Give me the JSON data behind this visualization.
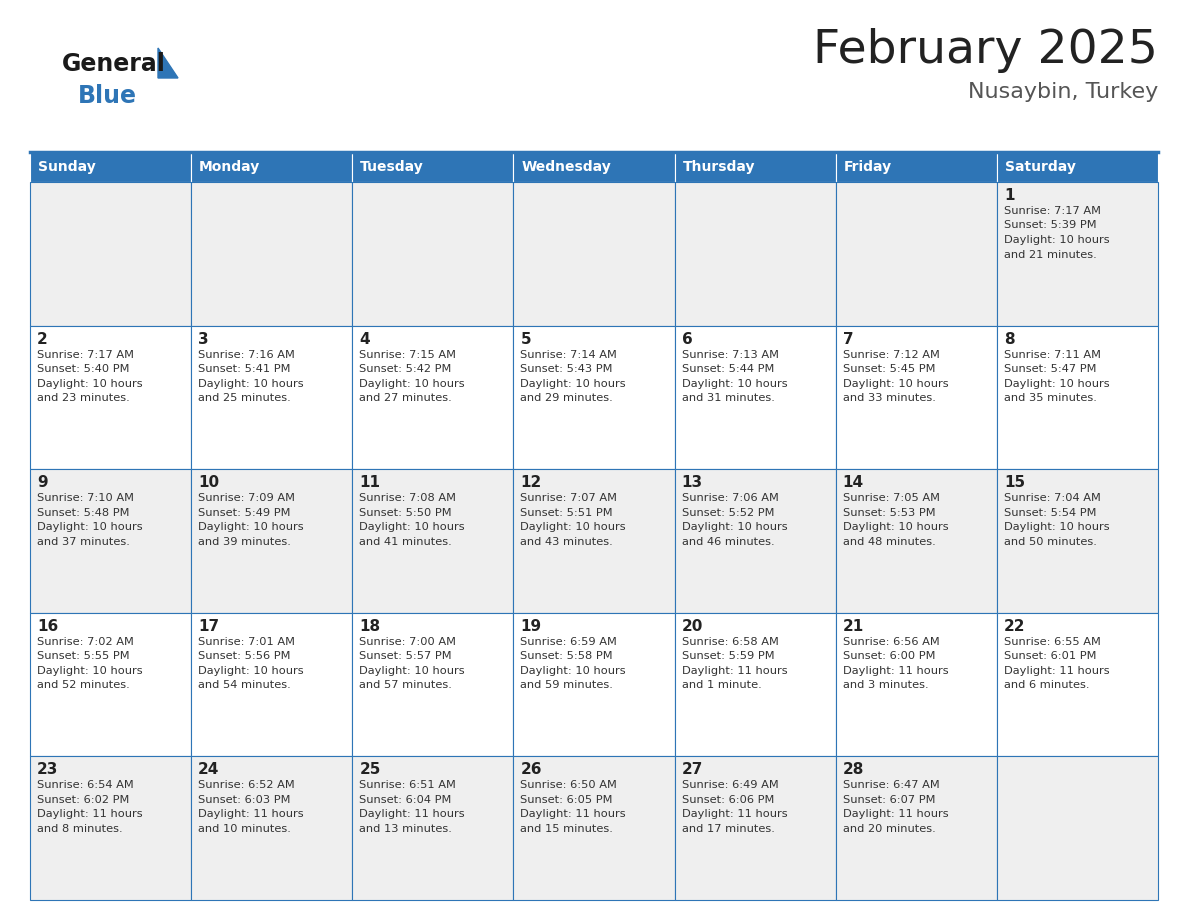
{
  "title": "February 2025",
  "subtitle": "Nusaybin, Turkey",
  "days_of_week": [
    "Sunday",
    "Monday",
    "Tuesday",
    "Wednesday",
    "Thursday",
    "Friday",
    "Saturday"
  ],
  "header_bg": "#2e75b6",
  "header_text": "#ffffff",
  "row_bg_light": "#efefef",
  "row_bg_white": "#ffffff",
  "cell_border_color": "#2e75b6",
  "day_num_color": "#222222",
  "info_color": "#333333",
  "title_color": "#222222",
  "subtitle_color": "#555555",
  "logo_general_color": "#1a1a1a",
  "logo_blue_color": "#2e75b6",
  "weeks": [
    [
      {
        "day": null,
        "sunrise": null,
        "sunset": null,
        "daylight_line1": null,
        "daylight_line2": null
      },
      {
        "day": null,
        "sunrise": null,
        "sunset": null,
        "daylight_line1": null,
        "daylight_line2": null
      },
      {
        "day": null,
        "sunrise": null,
        "sunset": null,
        "daylight_line1": null,
        "daylight_line2": null
      },
      {
        "day": null,
        "sunrise": null,
        "sunset": null,
        "daylight_line1": null,
        "daylight_line2": null
      },
      {
        "day": null,
        "sunrise": null,
        "sunset": null,
        "daylight_line1": null,
        "daylight_line2": null
      },
      {
        "day": null,
        "sunrise": null,
        "sunset": null,
        "daylight_line1": null,
        "daylight_line2": null
      },
      {
        "day": "1",
        "sunrise": "7:17 AM",
        "sunset": "5:39 PM",
        "daylight_line1": "10 hours",
        "daylight_line2": "and 21 minutes."
      }
    ],
    [
      {
        "day": "2",
        "sunrise": "7:17 AM",
        "sunset": "5:40 PM",
        "daylight_line1": "10 hours",
        "daylight_line2": "and 23 minutes."
      },
      {
        "day": "3",
        "sunrise": "7:16 AM",
        "sunset": "5:41 PM",
        "daylight_line1": "10 hours",
        "daylight_line2": "and 25 minutes."
      },
      {
        "day": "4",
        "sunrise": "7:15 AM",
        "sunset": "5:42 PM",
        "daylight_line1": "10 hours",
        "daylight_line2": "and 27 minutes."
      },
      {
        "day": "5",
        "sunrise": "7:14 AM",
        "sunset": "5:43 PM",
        "daylight_line1": "10 hours",
        "daylight_line2": "and 29 minutes."
      },
      {
        "day": "6",
        "sunrise": "7:13 AM",
        "sunset": "5:44 PM",
        "daylight_line1": "10 hours",
        "daylight_line2": "and 31 minutes."
      },
      {
        "day": "7",
        "sunrise": "7:12 AM",
        "sunset": "5:45 PM",
        "daylight_line1": "10 hours",
        "daylight_line2": "and 33 minutes."
      },
      {
        "day": "8",
        "sunrise": "7:11 AM",
        "sunset": "5:47 PM",
        "daylight_line1": "10 hours",
        "daylight_line2": "and 35 minutes."
      }
    ],
    [
      {
        "day": "9",
        "sunrise": "7:10 AM",
        "sunset": "5:48 PM",
        "daylight_line1": "10 hours",
        "daylight_line2": "and 37 minutes."
      },
      {
        "day": "10",
        "sunrise": "7:09 AM",
        "sunset": "5:49 PM",
        "daylight_line1": "10 hours",
        "daylight_line2": "and 39 minutes."
      },
      {
        "day": "11",
        "sunrise": "7:08 AM",
        "sunset": "5:50 PM",
        "daylight_line1": "10 hours",
        "daylight_line2": "and 41 minutes."
      },
      {
        "day": "12",
        "sunrise": "7:07 AM",
        "sunset": "5:51 PM",
        "daylight_line1": "10 hours",
        "daylight_line2": "and 43 minutes."
      },
      {
        "day": "13",
        "sunrise": "7:06 AM",
        "sunset": "5:52 PM",
        "daylight_line1": "10 hours",
        "daylight_line2": "and 46 minutes."
      },
      {
        "day": "14",
        "sunrise": "7:05 AM",
        "sunset": "5:53 PM",
        "daylight_line1": "10 hours",
        "daylight_line2": "and 48 minutes."
      },
      {
        "day": "15",
        "sunrise": "7:04 AM",
        "sunset": "5:54 PM",
        "daylight_line1": "10 hours",
        "daylight_line2": "and 50 minutes."
      }
    ],
    [
      {
        "day": "16",
        "sunrise": "7:02 AM",
        "sunset": "5:55 PM",
        "daylight_line1": "10 hours",
        "daylight_line2": "and 52 minutes."
      },
      {
        "day": "17",
        "sunrise": "7:01 AM",
        "sunset": "5:56 PM",
        "daylight_line1": "10 hours",
        "daylight_line2": "and 54 minutes."
      },
      {
        "day": "18",
        "sunrise": "7:00 AM",
        "sunset": "5:57 PM",
        "daylight_line1": "10 hours",
        "daylight_line2": "and 57 minutes."
      },
      {
        "day": "19",
        "sunrise": "6:59 AM",
        "sunset": "5:58 PM",
        "daylight_line1": "10 hours",
        "daylight_line2": "and 59 minutes."
      },
      {
        "day": "20",
        "sunrise": "6:58 AM",
        "sunset": "5:59 PM",
        "daylight_line1": "11 hours",
        "daylight_line2": "and 1 minute."
      },
      {
        "day": "21",
        "sunrise": "6:56 AM",
        "sunset": "6:00 PM",
        "daylight_line1": "11 hours",
        "daylight_line2": "and 3 minutes."
      },
      {
        "day": "22",
        "sunrise": "6:55 AM",
        "sunset": "6:01 PM",
        "daylight_line1": "11 hours",
        "daylight_line2": "and 6 minutes."
      }
    ],
    [
      {
        "day": "23",
        "sunrise": "6:54 AM",
        "sunset": "6:02 PM",
        "daylight_line1": "11 hours",
        "daylight_line2": "and 8 minutes."
      },
      {
        "day": "24",
        "sunrise": "6:52 AM",
        "sunset": "6:03 PM",
        "daylight_line1": "11 hours",
        "daylight_line2": "and 10 minutes."
      },
      {
        "day": "25",
        "sunrise": "6:51 AM",
        "sunset": "6:04 PM",
        "daylight_line1": "11 hours",
        "daylight_line2": "and 13 minutes."
      },
      {
        "day": "26",
        "sunrise": "6:50 AM",
        "sunset": "6:05 PM",
        "daylight_line1": "11 hours",
        "daylight_line2": "and 15 minutes."
      },
      {
        "day": "27",
        "sunrise": "6:49 AM",
        "sunset": "6:06 PM",
        "daylight_line1": "11 hours",
        "daylight_line2": "and 17 minutes."
      },
      {
        "day": "28",
        "sunrise": "6:47 AM",
        "sunset": "6:07 PM",
        "daylight_line1": "11 hours",
        "daylight_line2": "and 20 minutes."
      },
      {
        "day": null,
        "sunrise": null,
        "sunset": null,
        "daylight_line1": null,
        "daylight_line2": null
      }
    ]
  ]
}
